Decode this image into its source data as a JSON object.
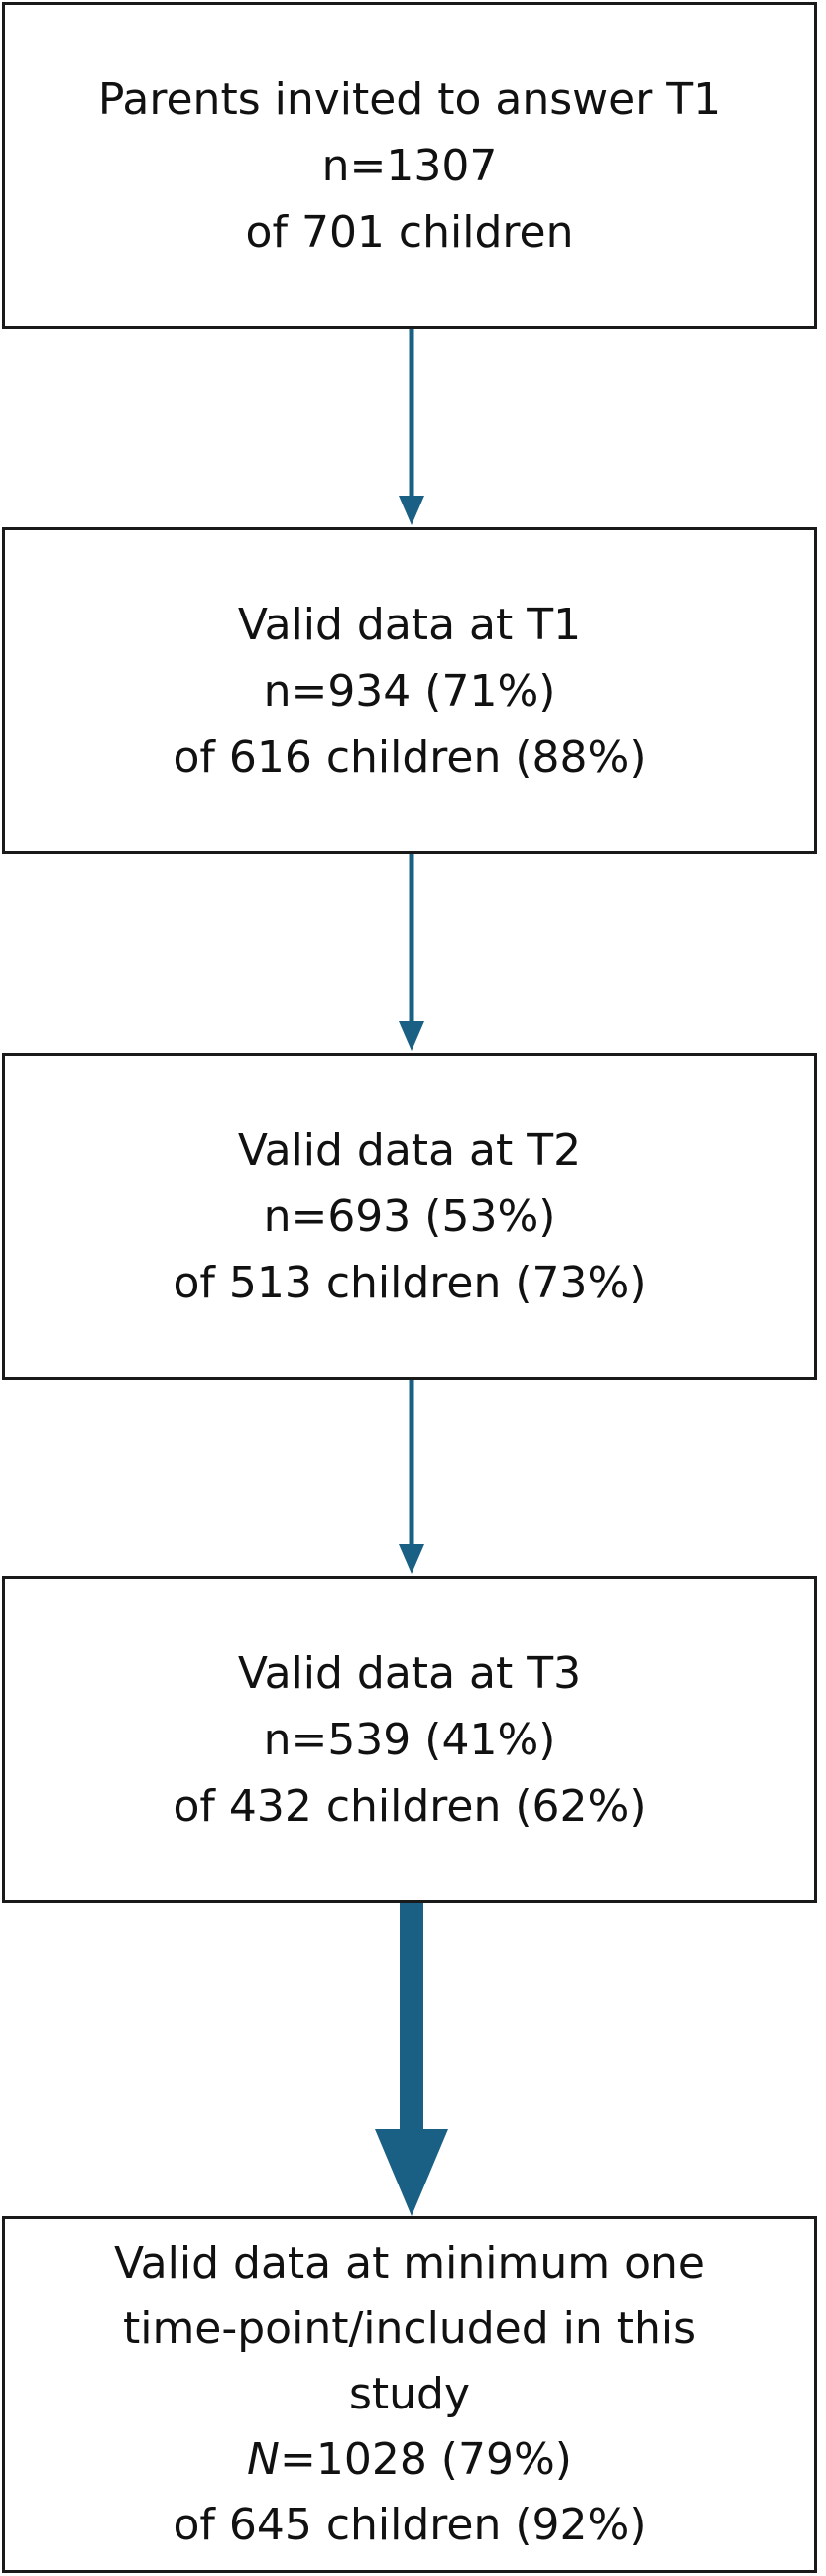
{
  "colors": {
    "arrow": "#1a6084",
    "box_border": "#1a1a1a"
  },
  "boxes": [
    {
      "lines": [
        "Parents invited to answer T1",
        "n=1307",
        "of 701 children"
      ]
    },
    {
      "lines": [
        "Valid data at T1",
        "n=934 (71%)",
        "of 616 children (88%)"
      ]
    },
    {
      "lines": [
        "Valid data at T2",
        "n=693 (53%)",
        "of 513 children (73%)"
      ]
    },
    {
      "lines": [
        "Valid data at T3",
        "n=539 (41%)",
        "of 432 children (62%)"
      ]
    },
    {
      "lines": [
        "Valid data at minimum one",
        "time-point/included in this",
        "study"
      ],
      "n_symbol": "N",
      "n_value": "=1028 (79%)",
      "last_line": "of 645 children (92%)"
    }
  ]
}
